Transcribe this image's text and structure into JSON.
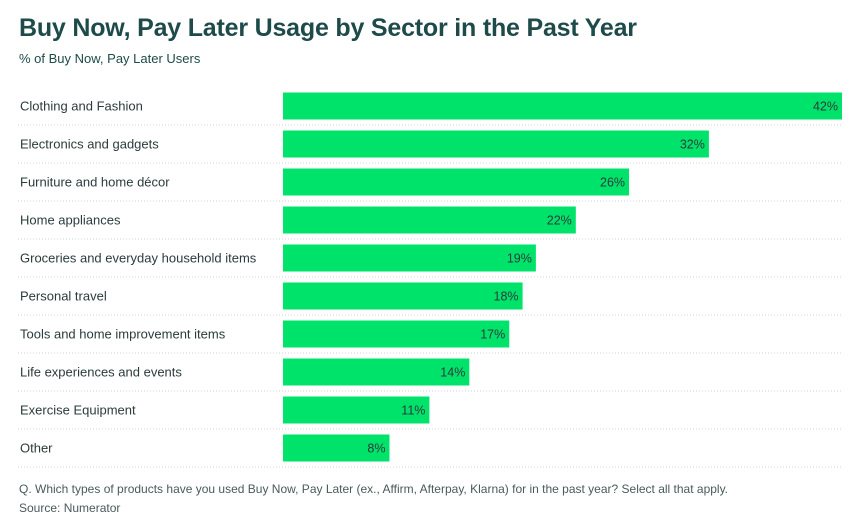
{
  "chart_data": {
    "type": "bar",
    "orientation": "horizontal",
    "title": "Buy Now, Pay Later Usage by Sector in the Past Year",
    "subtitle": "% of Buy Now, Pay Later Users",
    "categories": [
      "Clothing and Fashion",
      "Electronics and gadgets",
      "Furniture and home décor",
      "Home appliances",
      "Groceries and everyday household items",
      "Personal travel",
      "Tools and home improvement items",
      "Life experiences and events",
      "Exercise Equipment",
      "Other"
    ],
    "values": [
      42,
      32,
      26,
      22,
      19,
      18,
      17,
      14,
      11,
      8
    ],
    "value_labels": [
      "42%",
      "32%",
      "26%",
      "22%",
      "19%",
      "18%",
      "17%",
      "14%",
      "11%",
      "8%"
    ],
    "xlim": [
      0,
      42
    ],
    "bar_color": "#00e36a",
    "xlabel": "",
    "ylabel": ""
  },
  "footer": {
    "question": "Q. Which types of products have you used Buy Now, Pay Later (ex., Affirm, Afterpay, Klarna) for in the past year? Select all that apply.",
    "source": "Source: Numerator"
  }
}
